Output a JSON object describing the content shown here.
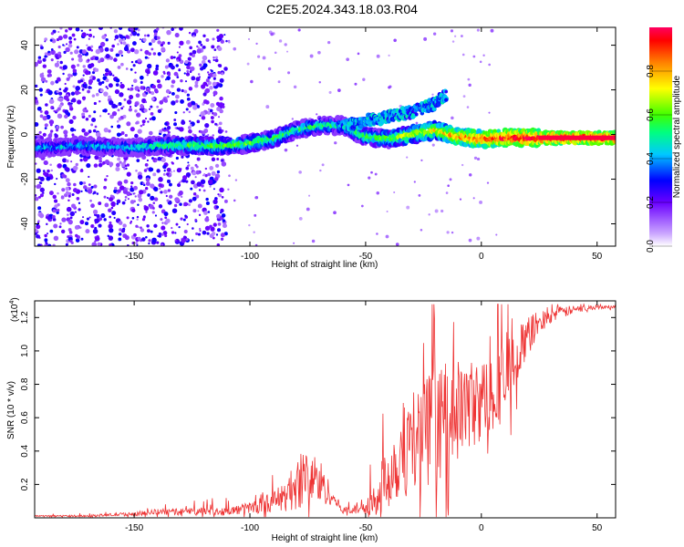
{
  "title": "C2E5.2024.343.18.03.R04",
  "chart_data": [
    {
      "type": "heatmap",
      "xlabel": "Height of straight line (km)",
      "ylabel": "Frequency (Hz)",
      "xlim": [
        -193,
        58
      ],
      "ylim": [
        -50,
        48
      ],
      "xticks": [
        -150,
        -100,
        -50,
        0,
        50
      ],
      "yticks": [
        -40,
        -20,
        0,
        20,
        40
      ],
      "colorbar": {
        "label": "Normalized spectral amplitude",
        "range": [
          0,
          1
        ],
        "ticks": [
          "0.0",
          "0.2",
          "0.4",
          "0.6",
          "0.8"
        ],
        "colors": [
          "#ffffff",
          "#c9a3ff",
          "#6a00ff",
          "#0000ff",
          "#00c8ff",
          "#00ff80",
          "#40ff00",
          "#ffff00",
          "#ff8000",
          "#ff0000",
          "#ff0060"
        ]
      },
      "ridge": {
        "x": [
          -190,
          -175,
          -160,
          -150,
          -140,
          -125,
          -110,
          -100,
          -90,
          -80,
          -70,
          -60,
          -50,
          -40,
          -30,
          -20,
          -10,
          0,
          10,
          20,
          30,
          40,
          50,
          58
        ],
        "y": [
          -6,
          -5,
          -5.5,
          -6,
          -5,
          -5,
          -5,
          -4,
          -2,
          2,
          4,
          4,
          -1,
          -2,
          0,
          2,
          -1,
          -2,
          -1.5,
          -1.5,
          -1.5,
          -1.5,
          -1.5,
          -1.5
        ],
        "amplitude": [
          0.45,
          0.45,
          0.45,
          0.45,
          0.55,
          0.6,
          0.6,
          0.6,
          0.6,
          0.55,
          0.55,
          0.5,
          0.6,
          0.65,
          0.7,
          0.75,
          0.85,
          0.9,
          0.95,
          1,
          1,
          1,
          1,
          1
        ]
      },
      "upper_branch": {
        "x": [
          -60,
          -50,
          -40,
          -30,
          -20,
          -15
        ],
        "y": [
          4,
          6,
          8,
          10,
          14,
          18
        ]
      },
      "noise_region_x": [
        -193,
        -110
      ]
    },
    {
      "type": "line",
      "xlabel": "Height of straight line (km)",
      "ylabel": "SNR (10 * v/v)",
      "scale_label": "(x10",
      "scale_exp": "4",
      "scale_close": ")",
      "xlim": [
        -193,
        58
      ],
      "ylim": [
        0,
        1.3
      ],
      "xticks": [
        -150,
        -100,
        -50,
        0,
        50
      ],
      "yticks": [
        "0.2",
        "0.4",
        "0.6",
        "0.8",
        "1.0",
        "1.2"
      ],
      "color": "#ee3333",
      "series": [
        {
          "x": [
            -193,
            -180,
            -170,
            -160,
            -150,
            -140,
            -130,
            -120,
            -110,
            -100,
            -90,
            -85,
            -80,
            -75,
            -70,
            -65,
            -60,
            -55,
            -50,
            -45,
            -40,
            -35,
            -30,
            -25,
            -20,
            -15,
            -10,
            -5,
            0,
            5,
            10,
            15,
            20,
            25,
            30,
            35,
            40,
            45,
            50,
            55,
            58
          ],
          "base": [
            0.01,
            0.01,
            0.01,
            0.015,
            0.02,
            0.03,
            0.03,
            0.035,
            0.03,
            0.05,
            0.08,
            0.1,
            0.15,
            0.2,
            0.17,
            0.12,
            0.04,
            0.04,
            0.06,
            0.1,
            0.2,
            0.3,
            0.35,
            0.4,
            0.45,
            0.5,
            0.55,
            0.6,
            0.62,
            0.7,
            0.75,
            0.9,
            1.05,
            1.15,
            1.2,
            1.22,
            1.24,
            1.25,
            1.26,
            1.26,
            1.26
          ],
          "spread": [
            0.005,
            0.008,
            0.01,
            0.015,
            0.02,
            0.03,
            0.035,
            0.04,
            0.04,
            0.06,
            0.1,
            0.15,
            0.25,
            0.3,
            0.25,
            0.1,
            0.03,
            0.05,
            0.1,
            0.2,
            0.35,
            0.45,
            0.5,
            0.55,
            0.6,
            0.55,
            0.5,
            0.45,
            0.4,
            0.45,
            0.4,
            0.3,
            0.2,
            0.12,
            0.08,
            0.06,
            0.04,
            0.03,
            0.02,
            0.015,
            0.015
          ]
        }
      ]
    }
  ]
}
